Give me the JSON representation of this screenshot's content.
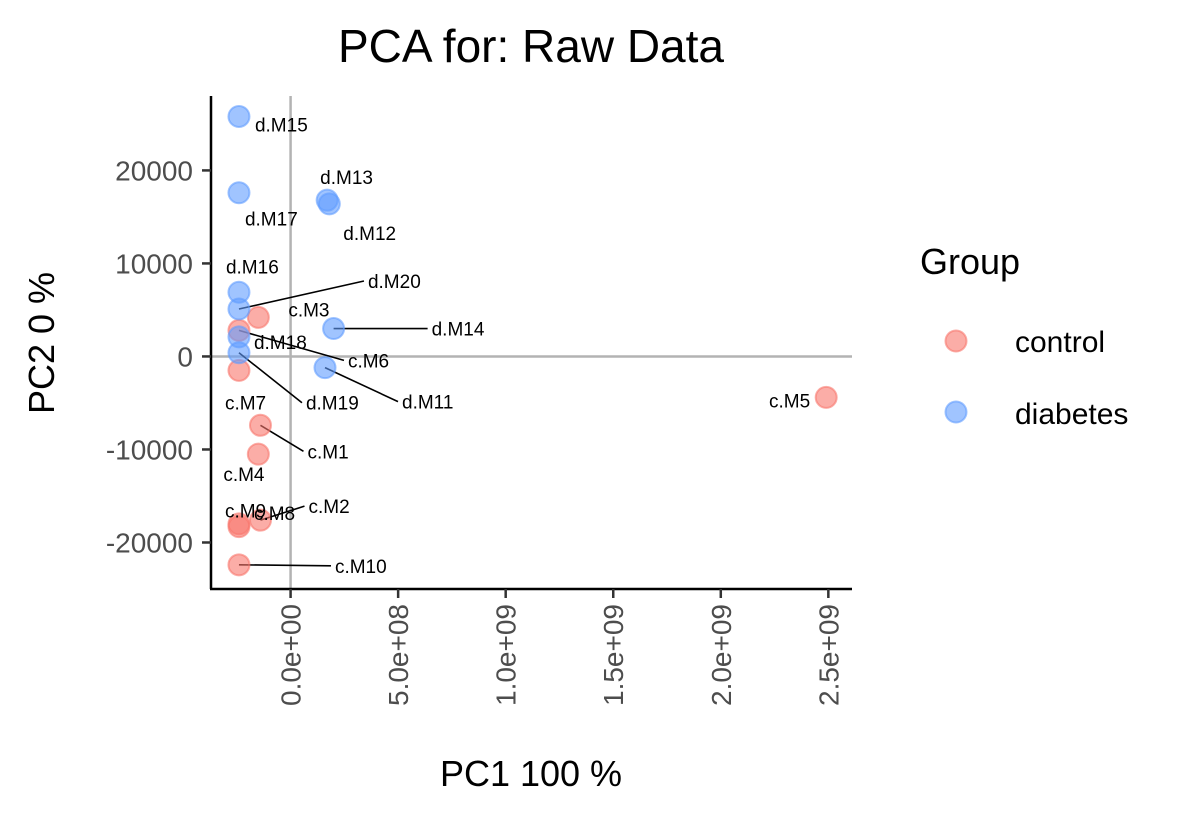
{
  "chart_data": {
    "type": "scatter",
    "title": "PCA for:  Raw Data",
    "xlabel": "PC1 100 %",
    "ylabel": "PC2 0 %",
    "xlim": [
      -370000000,
      2610000000
    ],
    "ylim": [
      -25000,
      28000
    ],
    "x_ticks": [
      0,
      500000000,
      1000000000,
      1500000000,
      2000000000,
      2500000000
    ],
    "x_tick_labels": [
      "0.0e+00",
      "5.0e+08",
      "1.0e+09",
      "1.5e+09",
      "2.0e+09",
      "2.5e+09"
    ],
    "y_ticks": [
      -20000,
      -10000,
      0,
      10000,
      20000
    ],
    "y_tick_labels": [
      "-20000",
      "-10000",
      "0",
      "10000",
      "20000"
    ],
    "reference_lines": {
      "x": 0,
      "y": 0
    },
    "grid": false,
    "legend": {
      "title": "Group",
      "position": "right",
      "entries": [
        {
          "label": "control",
          "color": "#F8766D"
        },
        {
          "label": "diabetes",
          "color": "#619CFF"
        }
      ]
    },
    "series": [
      {
        "name": "control",
        "color": "#F8766D",
        "points": [
          {
            "label": "c.M1",
            "x": -140000000,
            "y": -7400
          },
          {
            "label": "c.M2",
            "x": -140000000,
            "y": -17600
          },
          {
            "label": "c.M3",
            "x": -150000000,
            "y": 4200
          },
          {
            "label": "c.M4",
            "x": -150000000,
            "y": -10500
          },
          {
            "label": "c.M5",
            "x": 2490000000,
            "y": -4400
          },
          {
            "label": "c.M6",
            "x": -240000000,
            "y": 2800
          },
          {
            "label": "c.M7",
            "x": -240000000,
            "y": -1500
          },
          {
            "label": "c.M8",
            "x": -240000000,
            "y": -18000
          },
          {
            "label": "c.M9",
            "x": -240000000,
            "y": -18300
          },
          {
            "label": "c.M10",
            "x": -240000000,
            "y": -22400
          }
        ]
      },
      {
        "name": "diabetes",
        "color": "#619CFF",
        "points": [
          {
            "label": "d.M11",
            "x": 160000000,
            "y": -1200
          },
          {
            "label": "d.M12",
            "x": 180000000,
            "y": 16400
          },
          {
            "label": "d.M13",
            "x": 170000000,
            "y": 16800
          },
          {
            "label": "d.M14",
            "x": 200000000,
            "y": 3000
          },
          {
            "label": "d.M15",
            "x": -240000000,
            "y": 25800
          },
          {
            "label": "d.M16",
            "x": -240000000,
            "y": 6900
          },
          {
            "label": "d.M17",
            "x": -240000000,
            "y": 17600
          },
          {
            "label": "d.M18",
            "x": -240000000,
            "y": 2100
          },
          {
            "label": "d.M19",
            "x": -240000000,
            "y": 400
          },
          {
            "label": "d.M20",
            "x": -240000000,
            "y": 5100
          }
        ]
      }
    ]
  }
}
